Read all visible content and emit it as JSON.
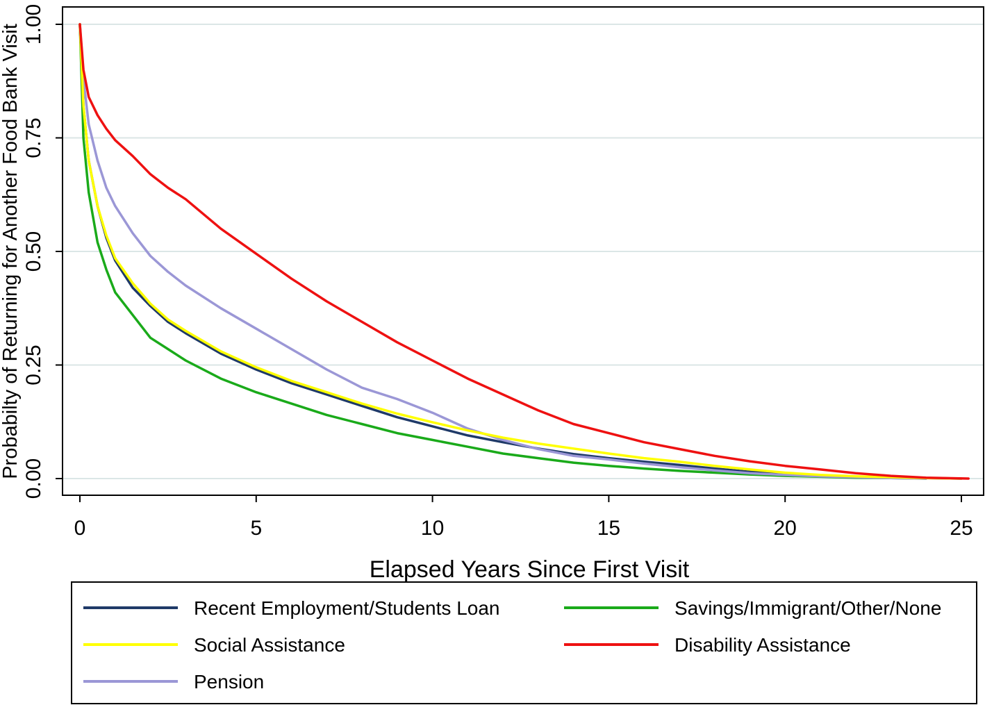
{
  "chart_data": {
    "type": "line",
    "title": "",
    "xlabel": "Elapsed Years Since First Visit",
    "ylabel": "Probabilty of Returning for Another Food Bank Visit",
    "xlim": [
      0,
      25.5
    ],
    "ylim": [
      0,
      1
    ],
    "xticks": [
      0,
      5,
      10,
      15,
      20,
      25
    ],
    "xtick_labels": [
      "0",
      "5",
      "10",
      "15",
      "20",
      "25"
    ],
    "yticks": [
      0,
      0.25,
      0.5,
      0.75,
      1
    ],
    "ytick_labels": [
      "0.00",
      "0.25",
      "0.50",
      "0.75",
      "1.00"
    ],
    "grid": "horizontal",
    "legend_position": "bottom",
    "series": [
      {
        "name": "Recent Employment/Students Loan",
        "color": "#1f3a68",
        "x": [
          0,
          0.1,
          0.25,
          0.5,
          0.75,
          1,
          1.5,
          2,
          2.5,
          3,
          4,
          5,
          6,
          7,
          8,
          9,
          10,
          11,
          12,
          13,
          14,
          15,
          16,
          17,
          18,
          19,
          20,
          21,
          22,
          23,
          24,
          25
        ],
        "y": [
          1.0,
          0.82,
          0.7,
          0.6,
          0.53,
          0.48,
          0.42,
          0.38,
          0.345,
          0.32,
          0.275,
          0.24,
          0.21,
          0.185,
          0.16,
          0.135,
          0.115,
          0.095,
          0.08,
          0.066,
          0.054,
          0.045,
          0.037,
          0.03,
          0.022,
          0.015,
          0.01,
          0.006,
          0.004,
          0.002,
          0.001,
          0.0
        ]
      },
      {
        "name": "Social Assistance",
        "color": "#ffff00",
        "x": [
          0,
          0.1,
          0.25,
          0.5,
          0.75,
          1,
          1.5,
          2,
          2.5,
          3,
          4,
          5,
          6,
          7,
          8,
          9,
          10,
          11,
          12,
          13,
          14,
          15,
          16,
          17,
          18,
          19,
          20,
          21,
          22,
          23,
          24,
          25
        ],
        "y": [
          1.0,
          0.82,
          0.7,
          0.6,
          0.535,
          0.485,
          0.43,
          0.385,
          0.35,
          0.325,
          0.28,
          0.245,
          0.215,
          0.19,
          0.165,
          0.143,
          0.124,
          0.106,
          0.09,
          0.077,
          0.066,
          0.055,
          0.045,
          0.037,
          0.028,
          0.02,
          0.013,
          0.008,
          0.005,
          0.003,
          0.001,
          0.0
        ]
      },
      {
        "name": "Pension",
        "color": "#9b97d6",
        "x": [
          0,
          0.1,
          0.25,
          0.5,
          0.75,
          1,
          1.5,
          2,
          2.5,
          3,
          4,
          5,
          6,
          7,
          8,
          9,
          10,
          11,
          12,
          13,
          14,
          15,
          16,
          17,
          18,
          19,
          20,
          21,
          22,
          23,
          24
        ],
        "y": [
          1.0,
          0.88,
          0.78,
          0.7,
          0.64,
          0.6,
          0.54,
          0.49,
          0.455,
          0.425,
          0.375,
          0.33,
          0.285,
          0.24,
          0.2,
          0.175,
          0.145,
          0.11,
          0.085,
          0.065,
          0.05,
          0.042,
          0.033,
          0.025,
          0.018,
          0.012,
          0.008,
          0.005,
          0.003,
          0.001,
          0.0
        ]
      },
      {
        "name": "Savings/Immigrant/Other/None",
        "color": "#1aaa1a",
        "x": [
          0,
          0.1,
          0.25,
          0.5,
          0.75,
          1,
          1.5,
          2,
          2.5,
          3,
          4,
          5,
          6,
          7,
          8,
          9,
          10,
          11,
          12,
          13,
          14,
          15,
          16,
          17,
          18,
          19,
          20,
          21,
          22,
          23,
          24
        ],
        "y": [
          1.0,
          0.75,
          0.63,
          0.52,
          0.46,
          0.41,
          0.36,
          0.31,
          0.285,
          0.26,
          0.22,
          0.19,
          0.165,
          0.14,
          0.12,
          0.1,
          0.085,
          0.07,
          0.055,
          0.045,
          0.035,
          0.028,
          0.022,
          0.017,
          0.013,
          0.009,
          0.006,
          0.004,
          0.002,
          0.001,
          0.0
        ]
      },
      {
        "name": "Disability Assistance",
        "color": "#ee1111",
        "x": [
          0,
          0.1,
          0.25,
          0.5,
          0.75,
          1,
          1.5,
          2,
          2.5,
          3,
          4,
          5,
          6,
          7,
          8,
          9,
          10,
          11,
          12,
          13,
          14,
          15,
          16,
          17,
          18,
          19,
          20,
          21,
          22,
          23,
          24,
          25.2
        ],
        "y": [
          1.0,
          0.9,
          0.84,
          0.8,
          0.77,
          0.745,
          0.71,
          0.67,
          0.64,
          0.615,
          0.55,
          0.495,
          0.44,
          0.39,
          0.345,
          0.3,
          0.26,
          0.22,
          0.185,
          0.15,
          0.12,
          0.1,
          0.08,
          0.065,
          0.05,
          0.038,
          0.028,
          0.02,
          0.012,
          0.006,
          0.002,
          0.0
        ]
      }
    ]
  }
}
